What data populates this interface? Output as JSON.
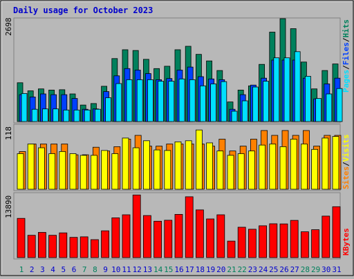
{
  "title": "Daily usage for October 2023",
  "colors": {
    "background": "#b8b8b8",
    "title": "#0000cc",
    "hits": "#00805c",
    "files": "#0040ff",
    "pages": "#00e0ff",
    "visits": "#ffff00",
    "sites": "#ff8000",
    "kbytes": "#ff0000",
    "weekend_day": "#00805c",
    "weekday": "#0000cc"
  },
  "chart_data": [
    {
      "type": "bar",
      "panel": "hits-files-pages",
      "ymax_label": "2698",
      "legend": [
        {
          "name": "Pages",
          "color": "#00e0ff"
        },
        {
          "name": "Files",
          "color": "#0040ff"
        },
        {
          "name": "Hits",
          "color": "#00805c"
        }
      ],
      "categories": [
        "1",
        "2",
        "3",
        "4",
        "5",
        "6",
        "7",
        "8",
        "9",
        "10",
        "11",
        "12",
        "13",
        "14",
        "15",
        "16",
        "17",
        "18",
        "19",
        "20",
        "21",
        "22",
        "23",
        "24",
        "25",
        "26",
        "27",
        "28",
        "29",
        "30",
        "31"
      ],
      "series": [
        {
          "name": "Hits",
          "values": [
            1010,
            800,
            850,
            820,
            830,
            720,
            430,
            470,
            920,
            1640,
            1870,
            1850,
            1620,
            1380,
            1440,
            1870,
            1960,
            1750,
            1580,
            1330,
            510,
            820,
            930,
            1490,
            2330,
            2680,
            2420,
            1550,
            850,
            1330,
            1500
          ]
        },
        {
          "name": "Files",
          "values": [
            700,
            640,
            720,
            700,
            700,
            600,
            320,
            330,
            780,
            1190,
            1380,
            1340,
            1250,
            1090,
            1120,
            1340,
            1420,
            1170,
            1110,
            1090,
            320,
            700,
            950,
            1130,
            1600,
            1600,
            1600,
            1130,
            590,
            980,
            1130
          ]
        },
        {
          "name": "Pages",
          "values": [
            730,
            320,
            330,
            330,
            300,
            300,
            300,
            320,
            620,
            990,
            1090,
            1090,
            1090,
            1050,
            1050,
            1110,
            1090,
            930,
            980,
            1040,
            270,
            540,
            900,
            1050,
            1660,
            1660,
            1820,
            1180,
            600,
            720,
            860
          ]
        }
      ]
    },
    {
      "type": "bar",
      "panel": "visits-sites",
      "ymax_label": "118",
      "legend": [
        {
          "name": "Sites",
          "color": "#ff8000"
        },
        {
          "name": "Visits",
          "color": "#ffff00"
        }
      ],
      "categories": [
        "1",
        "2",
        "3",
        "4",
        "5",
        "6",
        "7",
        "8",
        "9",
        "10",
        "11",
        "12",
        "13",
        "14",
        "15",
        "16",
        "17",
        "18",
        "19",
        "20",
        "21",
        "22",
        "23",
        "24",
        "25",
        "26",
        "27",
        "28",
        "29",
        "30",
        "31"
      ],
      "series": [
        {
          "name": "Visits",
          "values": [
            66,
            84,
            77,
            66,
            70,
            66,
            63,
            63,
            72,
            66,
            95,
            77,
            90,
            73,
            72,
            88,
            90,
            110,
            86,
            71,
            63,
            66,
            71,
            82,
            84,
            79,
            93,
            84,
            74,
            95,
            98
          ]
        },
        {
          "name": "Sites",
          "values": [
            70,
            84,
            84,
            84,
            84,
            64,
            64,
            78,
            71,
            79,
            93,
            100,
            80,
            80,
            84,
            84,
            84,
            84,
            80,
            93,
            71,
            80,
            93,
            109,
            100,
            109,
            100,
            109,
            80,
            100,
            100
          ]
        }
      ]
    },
    {
      "type": "bar",
      "panel": "kbytes",
      "ymax_label": "13890",
      "legend": [
        {
          "name": "KBytes",
          "color": "#ff0000"
        }
      ],
      "categories": [
        "1",
        "2",
        "3",
        "4",
        "5",
        "6",
        "7",
        "8",
        "9",
        "10",
        "11",
        "12",
        "13",
        "14",
        "15",
        "16",
        "17",
        "18",
        "19",
        "20",
        "21",
        "22",
        "23",
        "24",
        "25",
        "26",
        "27",
        "28",
        "29",
        "30",
        "31"
      ],
      "series": [
        {
          "name": "KBytes",
          "values": [
            8580,
            4880,
            5510,
            4880,
            5400,
            4420,
            4540,
            3920,
            5860,
            8700,
            9360,
            13700,
            9190,
            7960,
            8170,
            9450,
            13300,
            10430,
            8460,
            9360,
            3610,
            6640,
            6210,
            6960,
            7400,
            7370,
            8140,
            5640,
            6100,
            9070,
            11130
          ]
        }
      ]
    }
  ],
  "x_labels": [
    "1",
    "2",
    "3",
    "4",
    "5",
    "6",
    "7",
    "8",
    "9",
    "10",
    "11",
    "12",
    "13",
    "14",
    "15",
    "16",
    "17",
    "18",
    "19",
    "20",
    "21",
    "22",
    "23",
    "24",
    "25",
    "26",
    "27",
    "28",
    "29",
    "30",
    "31"
  ],
  "weekend_days": [
    "1",
    "7",
    "8",
    "14",
    "15",
    "21",
    "22",
    "28",
    "29"
  ]
}
